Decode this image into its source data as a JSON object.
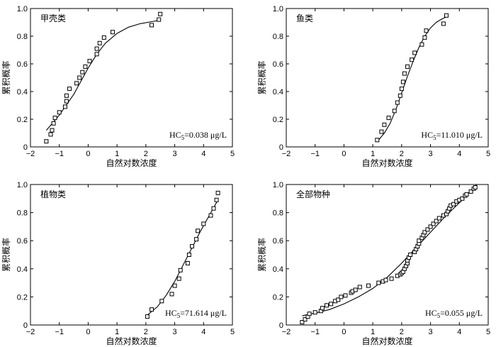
{
  "chart_data": [
    {
      "type": "scatter",
      "title": "甲壳类",
      "xlabel": "自然对数浓度",
      "ylabel": "累积概率",
      "xlim": [
        -2,
        5
      ],
      "ylim": [
        0,
        1.0
      ],
      "xticks": [
        -2,
        -1,
        0,
        1,
        2,
        3,
        4,
        5
      ],
      "yticks": [
        0,
        0.2,
        0.4,
        0.6,
        0.8,
        1.0
      ],
      "xtick_labels": [
        "−2",
        "−1",
        "0",
        "1",
        "2",
        "3",
        "4",
        "5"
      ],
      "ytick_labels": [
        "0",
        "0.2",
        "0.4",
        "0.6",
        "0.8",
        "1.0"
      ],
      "hc5_prefix": "HC",
      "hc5_sub": "5",
      "hc5_value": "=0.038 μg/L",
      "points": [
        [
          -1.45,
          0.04
        ],
        [
          -1.3,
          0.09
        ],
        [
          -1.25,
          0.12
        ],
        [
          -1.2,
          0.17
        ],
        [
          -1.15,
          0.21
        ],
        [
          -1.0,
          0.25
        ],
        [
          -0.8,
          0.29
        ],
        [
          -0.75,
          0.33
        ],
        [
          -0.75,
          0.37
        ],
        [
          -0.65,
          0.42
        ],
        [
          -0.4,
          0.46
        ],
        [
          -0.3,
          0.5
        ],
        [
          -0.2,
          0.54
        ],
        [
          -0.1,
          0.58
        ],
        [
          0.05,
          0.62
        ],
        [
          0.3,
          0.67
        ],
        [
          0.3,
          0.71
        ],
        [
          0.4,
          0.75
        ],
        [
          0.55,
          0.79
        ],
        [
          0.85,
          0.83
        ],
        [
          2.2,
          0.88
        ],
        [
          2.45,
          0.92
        ],
        [
          2.5,
          0.96
        ]
      ],
      "fit": [
        [
          -1.45,
          0.12
        ],
        [
          -1.0,
          0.23
        ],
        [
          -0.5,
          0.38
        ],
        [
          0.0,
          0.57
        ],
        [
          0.3,
          0.67
        ],
        [
          0.6,
          0.75
        ],
        [
          1.0,
          0.82
        ],
        [
          1.4,
          0.865
        ],
        [
          1.8,
          0.89
        ],
        [
          2.2,
          0.905
        ],
        [
          2.5,
          0.915
        ]
      ]
    },
    {
      "type": "scatter",
      "title": "鱼类",
      "xlabel": "自然对数浓度",
      "ylabel": "累积概率",
      "xlim": [
        -2,
        5
      ],
      "ylim": [
        0,
        1.0
      ],
      "xticks": [
        -2,
        -1,
        0,
        1,
        2,
        3,
        4,
        5
      ],
      "yticks": [
        0,
        0.2,
        0.4,
        0.6,
        0.8,
        1.0
      ],
      "xtick_labels": [
        "−2",
        "−1",
        "0",
        "1",
        "2",
        "3",
        "4",
        "5"
      ],
      "ytick_labels": [
        "0",
        "0.2",
        "0.4",
        "0.6",
        "0.8",
        "1.0"
      ],
      "hc5_prefix": "HC",
      "hc5_sub": "5",
      "hc5_value": "=11.010 μg/L",
      "points": [
        [
          1.15,
          0.05
        ],
        [
          1.3,
          0.11
        ],
        [
          1.4,
          0.16
        ],
        [
          1.55,
          0.21
        ],
        [
          1.75,
          0.26
        ],
        [
          1.85,
          0.32
        ],
        [
          1.95,
          0.37
        ],
        [
          2.0,
          0.42
        ],
        [
          2.05,
          0.47
        ],
        [
          2.1,
          0.53
        ],
        [
          2.2,
          0.58
        ],
        [
          2.35,
          0.63
        ],
        [
          2.45,
          0.68
        ],
        [
          2.7,
          0.74
        ],
        [
          2.8,
          0.79
        ],
        [
          2.85,
          0.84
        ],
        [
          3.45,
          0.89
        ],
        [
          3.55,
          0.95
        ]
      ],
      "fit": [
        [
          1.2,
          0.05
        ],
        [
          1.4,
          0.1
        ],
        [
          1.6,
          0.17
        ],
        [
          1.8,
          0.27
        ],
        [
          2.0,
          0.39
        ],
        [
          2.2,
          0.51
        ],
        [
          2.4,
          0.62
        ],
        [
          2.6,
          0.72
        ],
        [
          2.8,
          0.8
        ],
        [
          3.0,
          0.86
        ],
        [
          3.2,
          0.9
        ],
        [
          3.4,
          0.925
        ],
        [
          3.55,
          0.94
        ]
      ]
    },
    {
      "type": "scatter",
      "title": "植物类",
      "xlabel": "自然对数浓度",
      "ylabel": "累积概率",
      "xlim": [
        -2,
        5
      ],
      "ylim": [
        0,
        1.0
      ],
      "xticks": [
        -2,
        -1,
        0,
        1,
        2,
        3,
        4,
        5
      ],
      "yticks": [
        0,
        0.2,
        0.4,
        0.6,
        0.8,
        1.0
      ],
      "xtick_labels": [
        "−2",
        "−1",
        "0",
        "1",
        "2",
        "3",
        "4",
        "5"
      ],
      "ytick_labels": [
        "0",
        "0.2",
        "0.4",
        "0.6",
        "0.8",
        "1.0"
      ],
      "hc5_prefix": "HC",
      "hc5_sub": "5",
      "hc5_value": "=71.614 μg/L",
      "points": [
        [
          2.05,
          0.06
        ],
        [
          2.2,
          0.11
        ],
        [
          2.55,
          0.17
        ],
        [
          2.9,
          0.22
        ],
        [
          3.0,
          0.28
        ],
        [
          3.15,
          0.33
        ],
        [
          3.2,
          0.39
        ],
        [
          3.45,
          0.44
        ],
        [
          3.5,
          0.5
        ],
        [
          3.6,
          0.56
        ],
        [
          3.75,
          0.61
        ],
        [
          3.8,
          0.67
        ],
        [
          4.0,
          0.72
        ],
        [
          4.25,
          0.78
        ],
        [
          4.35,
          0.83
        ],
        [
          4.45,
          0.89
        ],
        [
          4.5,
          0.94
        ]
      ],
      "fit": [
        [
          2.05,
          0.07
        ],
        [
          2.4,
          0.13
        ],
        [
          2.7,
          0.21
        ],
        [
          3.0,
          0.31
        ],
        [
          3.3,
          0.43
        ],
        [
          3.6,
          0.55
        ],
        [
          3.9,
          0.67
        ],
        [
          4.2,
          0.78
        ],
        [
          4.5,
          0.89
        ]
      ]
    },
    {
      "type": "scatter",
      "title": "全部物种",
      "xlabel": "自然对数浓度",
      "ylabel": "累积概率",
      "xlim": [
        -2,
        5
      ],
      "ylim": [
        0,
        1.0
      ],
      "xticks": [
        -2,
        -1,
        0,
        1,
        2,
        3,
        4,
        5
      ],
      "yticks": [
        0,
        0.2,
        0.4,
        0.6,
        0.8,
        1.0
      ],
      "xtick_labels": [
        "−2",
        "−1",
        "0",
        "1",
        "2",
        "3",
        "4",
        "5"
      ],
      "ytick_labels": [
        "0",
        "0.2",
        "0.4",
        "0.6",
        "0.8",
        "1.0"
      ],
      "hc5_prefix": "HC",
      "hc5_sub": "5",
      "hc5_value": "=0.055 μg/L",
      "points": [
        [
          -1.45,
          0.02
        ],
        [
          -1.35,
          0.04
        ],
        [
          -1.25,
          0.06
        ],
        [
          -1.2,
          0.08
        ],
        [
          -1.0,
          0.09
        ],
        [
          -0.8,
          0.1
        ],
        [
          -0.75,
          0.12
        ],
        [
          -0.6,
          0.14
        ],
        [
          -0.45,
          0.15
        ],
        [
          -0.3,
          0.17
        ],
        [
          -0.2,
          0.18
        ],
        [
          -0.1,
          0.2
        ],
        [
          0.05,
          0.21
        ],
        [
          0.25,
          0.23
        ],
        [
          0.3,
          0.24
        ],
        [
          0.4,
          0.25
        ],
        [
          0.55,
          0.27
        ],
        [
          0.85,
          0.28
        ],
        [
          1.2,
          0.3
        ],
        [
          1.35,
          0.31
        ],
        [
          1.45,
          0.32
        ],
        [
          1.65,
          0.33
        ],
        [
          1.85,
          0.35
        ],
        [
          1.95,
          0.36
        ],
        [
          2.0,
          0.37
        ],
        [
          2.05,
          0.38
        ],
        [
          2.1,
          0.4
        ],
        [
          2.15,
          0.42
        ],
        [
          2.2,
          0.44
        ],
        [
          2.2,
          0.46
        ],
        [
          2.25,
          0.48
        ],
        [
          2.3,
          0.5
        ],
        [
          2.45,
          0.52
        ],
        [
          2.5,
          0.54
        ],
        [
          2.55,
          0.56
        ],
        [
          2.6,
          0.58
        ],
        [
          2.6,
          0.6
        ],
        [
          2.7,
          0.62
        ],
        [
          2.75,
          0.64
        ],
        [
          2.8,
          0.66
        ],
        [
          2.9,
          0.68
        ],
        [
          3.0,
          0.7
        ],
        [
          3.1,
          0.72
        ],
        [
          3.2,
          0.74
        ],
        [
          3.3,
          0.76
        ],
        [
          3.45,
          0.78
        ],
        [
          3.55,
          0.79
        ],
        [
          3.6,
          0.81
        ],
        [
          3.65,
          0.83
        ],
        [
          3.7,
          0.85
        ],
        [
          3.8,
          0.86
        ],
        [
          3.9,
          0.88
        ],
        [
          4.0,
          0.89
        ],
        [
          4.1,
          0.9
        ],
        [
          4.2,
          0.92
        ],
        [
          4.25,
          0.93
        ],
        [
          4.4,
          0.95
        ],
        [
          4.5,
          0.97
        ],
        [
          4.55,
          0.98
        ]
      ],
      "fit": [
        [
          -1.45,
          0.065
        ],
        [
          -1.0,
          0.085
        ],
        [
          -0.5,
          0.11
        ],
        [
          0.0,
          0.15
        ],
        [
          0.5,
          0.2
        ],
        [
          1.0,
          0.26
        ],
        [
          1.5,
          0.34
        ],
        [
          2.0,
          0.44
        ],
        [
          2.5,
          0.55
        ],
        [
          3.0,
          0.66
        ],
        [
          3.5,
          0.77
        ],
        [
          4.0,
          0.87
        ],
        [
          4.6,
          1.0
        ]
      ]
    }
  ]
}
